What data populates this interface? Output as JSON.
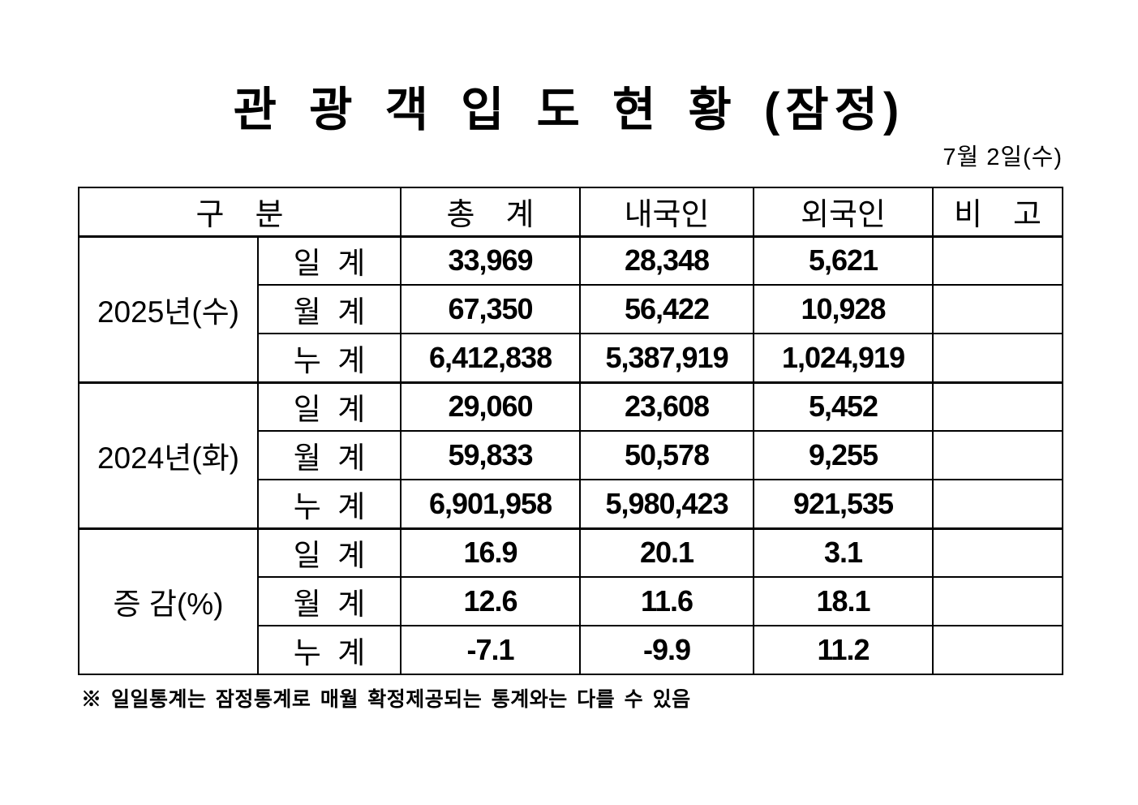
{
  "title": "관 광 객 입 도 현 황 (잠정)",
  "date": "7월 2일(수)",
  "table": {
    "headers": {
      "category": "구　분",
      "total": "총　계",
      "domestic": "내국인",
      "foreign": "외국인",
      "remarks": "비　고"
    },
    "groups": [
      {
        "label": "2025년(수)",
        "rows": [
          {
            "label": "일  계",
            "total": "33,969",
            "domestic": "28,348",
            "foreign": "5,621"
          },
          {
            "label": "월  계",
            "total": "67,350",
            "domestic": "56,422",
            "foreign": "10,928"
          },
          {
            "label": "누  계",
            "total": "6,412,838",
            "domestic": "5,387,919",
            "foreign": "1,024,919"
          }
        ]
      },
      {
        "label": "2024년(화)",
        "rows": [
          {
            "label": "일  계",
            "total": "29,060",
            "domestic": "23,608",
            "foreign": "5,452"
          },
          {
            "label": "월  계",
            "total": "59,833",
            "domestic": "50,578",
            "foreign": "9,255"
          },
          {
            "label": "누  계",
            "total": "6,901,958",
            "domestic": "5,980,423",
            "foreign": "921,535"
          }
        ]
      },
      {
        "label": "증 감(%)",
        "rows": [
          {
            "label": "일  계",
            "total": "16.9",
            "domestic": "20.1",
            "foreign": "3.1"
          },
          {
            "label": "월  계",
            "total": "12.6",
            "domestic": "11.6",
            "foreign": "18.1"
          },
          {
            "label": "누  계",
            "total": "-7.1",
            "domestic": "-9.9",
            "foreign": "11.2"
          }
        ]
      }
    ]
  },
  "footnote": "※ 일일통계는 잠정통계로 매월 확정제공되는 통계와는 다를 수 있음"
}
